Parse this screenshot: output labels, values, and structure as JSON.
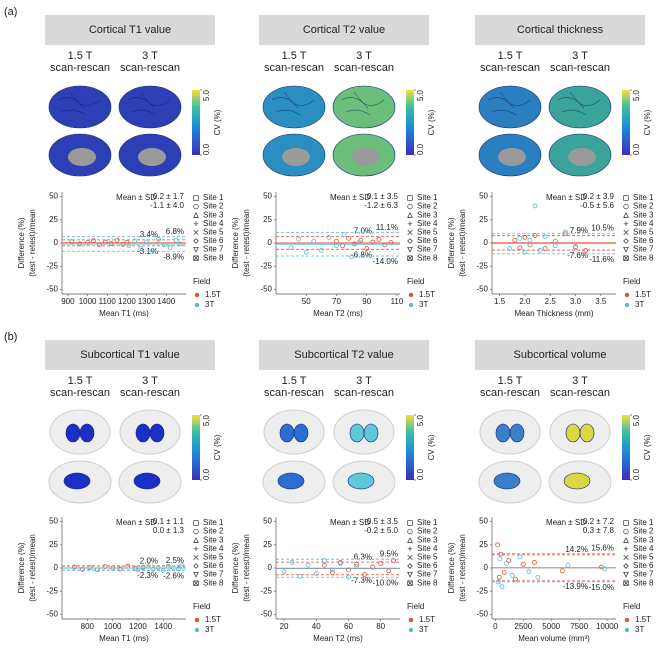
{
  "panel_labels": [
    "(a)",
    "(b)"
  ],
  "chart_data": [
    {
      "type": "scatter",
      "title": "Cortical T1 value",
      "scan_labels": [
        [
          "1.5 T",
          "scan-rescan"
        ],
        [
          "3 T",
          "scan-rescan"
        ]
      ],
      "colorbar": {
        "label": "CV (%)",
        "lim": [
          0,
          5
        ],
        "ticks": [
          {
            "value": 0,
            "label": "0.0"
          },
          {
            "value": 5,
            "label": "5.0"
          }
        ]
      },
      "xlabel": "Mean T1 (ms)",
      "ylabel": [
        "Difference (%)",
        "(test - retest)/mean"
      ],
      "xlim": [
        870,
        1500
      ],
      "xticks": [
        900,
        1000,
        1100,
        1200,
        1300,
        1400
      ],
      "ylim": [
        -55,
        55
      ],
      "yticks": [
        -50,
        -25,
        0,
        25,
        50
      ],
      "stats_title": "Mean ± SD",
      "sites": [
        "Site 1",
        "Site 2",
        "Site 3",
        "Site 4",
        "Site 5",
        "Site 6",
        "Site 7",
        "Site 8"
      ],
      "field_title": "Field",
      "series": [
        {
          "name": "1.5T",
          "color": "#e0533a",
          "x": [
            920,
            960,
            1000,
            1030,
            1060,
            1090,
            1120,
            1150,
            1180,
            1200
          ],
          "values": [
            1.5,
            -1,
            0.5,
            2.5,
            -2,
            1,
            -0.5,
            3,
            -1.5,
            0.8
          ],
          "mean": 0.2,
          "stat_label": "0.2 ± 1.7",
          "upper": 3.4,
          "upper_label": "3.4%",
          "lower": -3.1,
          "lower_label": "-3.1%"
        },
        {
          "name": "3T",
          "color": "#5fb8d3",
          "x": [
            1210,
            1240,
            1270,
            1300,
            1330,
            1360,
            1390,
            1420,
            1450,
            1470
          ],
          "values": [
            -3,
            2,
            -6,
            1,
            -8,
            4,
            -2,
            -5,
            3,
            -1
          ],
          "mean": -1.1,
          "stat_label": "-1.1 ± 4.0",
          "upper": 6.8,
          "upper_label": "6.8%",
          "lower": -8.9,
          "lower_label": "-8.9%"
        }
      ]
    },
    {
      "type": "scatter",
      "title": "Cortical T2 value",
      "scan_labels": [
        [
          "1.5 T",
          "scan-rescan"
        ],
        [
          "3 T",
          "scan-rescan"
        ]
      ],
      "colorbar": {
        "label": "CV (%)",
        "lim": [
          0,
          5
        ],
        "ticks": [
          {
            "value": 0,
            "label": "0.0"
          },
          {
            "value": 5,
            "label": "5.0"
          }
        ]
      },
      "xlabel": "Mean T2 (ms)",
      "ylabel": [
        "Difference (%)",
        "(test - retest)/mean"
      ],
      "xlim": [
        30,
        112
      ],
      "xticks": [
        50,
        70,
        90,
        110
      ],
      "ylim": [
        -55,
        55
      ],
      "yticks": [
        -50,
        -25,
        0,
        25,
        50
      ],
      "stats_title": "Mean ± SD",
      "sites": [
        "Site 1",
        "Site 2",
        "Site 3",
        "Site 4",
        "Site 5",
        "Site 6",
        "Site 7",
        "Site 8"
      ],
      "field_title": "Field",
      "series": [
        {
          "name": "1.5T",
          "color": "#e0533a",
          "x": [
            70,
            74,
            78,
            82,
            86,
            90,
            94,
            98,
            102,
            106
          ],
          "values": [
            2,
            -3,
            5,
            -1,
            3,
            -6,
            1,
            4,
            -2,
            0.5
          ],
          "mean": 0.1,
          "stat_label": "0.1 ± 3.5",
          "upper": 7.0,
          "upper_label": "7.0%",
          "lower": -6.8,
          "lower_label": "-6.8%"
        },
        {
          "name": "3T",
          "color": "#5fb8d3",
          "x": [
            40,
            45,
            50,
            55,
            60,
            65,
            70,
            75,
            80,
            85
          ],
          "values": [
            -5,
            4,
            -10,
            2,
            -8,
            6,
            -3,
            9,
            -15,
            1
          ],
          "mean": -1.2,
          "stat_label": "-1.2 ± 6.3",
          "upper": 11.1,
          "upper_label": "11.1%",
          "lower": -14.0,
          "lower_label": "-14.0%"
        }
      ]
    },
    {
      "type": "scatter",
      "title": "Cortical thickness",
      "scan_labels": [
        [
          "1.5 T",
          "scan-rescan"
        ],
        [
          "3 T",
          "scan-rescan"
        ]
      ],
      "colorbar": {
        "label": "CV (%)",
        "lim": [
          0,
          5
        ],
        "ticks": [
          {
            "value": 0,
            "label": "0.0"
          },
          {
            "value": 5,
            "label": "5.0"
          }
        ]
      },
      "xlabel": "Mean Thickness (mm)",
      "ylabel": [
        "Difference (%)",
        "(test - retest)/mean"
      ],
      "xlim": [
        1.35,
        3.8
      ],
      "xticks": [
        1.5,
        {
          "value": 2,
          "label": "2.0"
        },
        2.5,
        {
          "value": 3,
          "label": "3.0"
        },
        3.5
      ],
      "ylim": [
        -55,
        55
      ],
      "yticks": [
        -50,
        -25,
        0,
        25,
        50
      ],
      "stats_title": "Mean ± SD",
      "sites": [
        "Site 1",
        "Site 2",
        "Site 3",
        "Site 4",
        "Site 5",
        "Site 6",
        "Site 7",
        "Site 8"
      ],
      "field_title": "Field",
      "series": [
        {
          "name": "1.5T",
          "color": "#e0533a",
          "x": [
            1.8,
            1.9,
            2.0,
            2.1,
            2.2,
            2.4,
            2.6,
            2.8,
            3.0,
            3.2
          ],
          "values": [
            3,
            -5,
            6,
            -2,
            8,
            -6,
            2,
            10,
            -4,
            -8
          ],
          "mean": 0.2,
          "stat_label": "0.2 ± 3.9",
          "upper": 7.9,
          "upper_label": "7.9%",
          "lower": -7.6,
          "lower_label": "-7.6%"
        },
        {
          "name": "3T",
          "color": "#5fb8d3",
          "x": [
            1.7,
            1.9,
            2.0,
            2.1,
            2.2,
            2.3,
            2.4,
            2.6,
            2.8,
            3.0
          ],
          "values": [
            -6,
            5,
            -10,
            3,
            40,
            -8,
            7,
            -3,
            12,
            -5
          ],
          "mean": -0.5,
          "stat_label": "-0.5 ± 5.6",
          "upper": 10.5,
          "upper_label": "10.5%",
          "lower": -11.6,
          "lower_label": "-11.6%"
        }
      ]
    },
    {
      "type": "scatter",
      "title": "Subcortical T1 value",
      "scan_labels": [
        [
          "1.5 T",
          "scan-rescan"
        ],
        [
          "3 T",
          "scan-rescan"
        ]
      ],
      "colorbar": {
        "label": "CV (%)",
        "lim": [
          0,
          5
        ],
        "ticks": [
          {
            "value": 0,
            "label": "0.0"
          },
          {
            "value": 5,
            "label": "5.0"
          }
        ]
      },
      "xlabel": "Mean T1 (ms)",
      "ylabel": [
        "Difference (%)",
        "(test - retest)/mean"
      ],
      "xlim": [
        600,
        1580
      ],
      "xticks": [
        800,
        1000,
        1200,
        1400
      ],
      "ylim": [
        -55,
        55
      ],
      "yticks": [
        -50,
        -25,
        0,
        25,
        50
      ],
      "stats_title": "Mean ± SD",
      "sites": [
        "Site 1",
        "Site 2",
        "Site 3",
        "Site 4",
        "Site 5",
        "Site 6",
        "Site 7",
        "Site 8"
      ],
      "field_title": "Field",
      "series": [
        {
          "name": "1.5T",
          "color": "#e0533a",
          "x": [
            700,
            760,
            820,
            880,
            940,
            1000,
            1060,
            1120,
            1180,
            1240
          ],
          "values": [
            1,
            -1.5,
            0.5,
            -2,
            1.5,
            0,
            -1,
            1.8,
            -0.5,
            0.3
          ],
          "mean": -0.1,
          "stat_label": "-0.1 ± 1.1",
          "upper": 2.0,
          "upper_label": "2.0%",
          "lower": -2.3,
          "lower_label": "-2.3%"
        },
        {
          "name": "3T",
          "color": "#5fb8d3",
          "x": [
            1200,
            1240,
            1280,
            1320,
            1360,
            1400,
            1440,
            1480,
            1520,
            1550
          ],
          "values": [
            -2,
            1,
            2,
            -1.5,
            0.5,
            -2.5,
            1.8,
            0,
            -1,
            2.2
          ],
          "mean": 0.0,
          "stat_label": "0.0 ± 1.3",
          "upper": 2.5,
          "upper_label": "2.5%",
          "lower": -2.6,
          "lower_label": "-2.6%"
        }
      ]
    },
    {
      "type": "scatter",
      "title": "Subcortical T2 value",
      "scan_labels": [
        [
          "1.5 T",
          "scan-rescan"
        ],
        [
          "3 T",
          "scan-rescan"
        ]
      ],
      "colorbar": {
        "label": "CV (%)",
        "lim": [
          0,
          5
        ],
        "ticks": [
          {
            "value": 0,
            "label": "0.0"
          },
          {
            "value": 5,
            "label": "5.0"
          }
        ]
      },
      "xlabel": "Mean T2 (ms)",
      "ylabel": [
        "Difference (%)",
        "(test - retest)/mean"
      ],
      "xlim": [
        15,
        92
      ],
      "xticks": [
        20,
        40,
        60,
        80
      ],
      "ylim": [
        -55,
        55
      ],
      "yticks": [
        -50,
        -25,
        0,
        25,
        50
      ],
      "stats_title": "Mean ± SD",
      "sites": [
        "Site 1",
        "Site 2",
        "Site 3",
        "Site 4",
        "Site 5",
        "Site 6",
        "Site 7",
        "Site 8"
      ],
      "field_title": "Field",
      "series": [
        {
          "name": "1.5T",
          "color": "#e0533a",
          "x": [
            45,
            50,
            55,
            60,
            65,
            70,
            75,
            80,
            85,
            88
          ],
          "values": [
            3,
            -5,
            6,
            -2,
            4,
            -7,
            1,
            5,
            -3,
            8
          ],
          "mean": -0.5,
          "stat_label": "-0.5 ± 3.5",
          "upper": 6.3,
          "upper_label": "6.3%",
          "lower": -7.3,
          "lower_label": "-7.3%"
        },
        {
          "name": "3T",
          "color": "#5fb8d3",
          "x": [
            20,
            25,
            30,
            35,
            40,
            45,
            50,
            55,
            60,
            65
          ],
          "values": [
            -4,
            6,
            -9,
            3,
            -6,
            8,
            -2,
            5,
            -10,
            2
          ],
          "mean": -0.2,
          "stat_label": "-0.2 ± 5.0",
          "upper": 9.5,
          "upper_label": "9.5%",
          "lower": -10.0,
          "lower_label": "-10.0%"
        }
      ]
    },
    {
      "type": "scatter",
      "title": "Subcortical volume",
      "scan_labels": [
        [
          "1.5 T",
          "scan-rescan"
        ],
        [
          "3 T",
          "scan-rescan"
        ]
      ],
      "colorbar": {
        "label": "CV (%)",
        "lim": [
          0,
          5
        ],
        "ticks": [
          {
            "value": 0,
            "label": "0.0"
          },
          {
            "value": 5,
            "label": "5.0"
          }
        ]
      },
      "xlabel": "Mean volume (mm³)",
      "ylabel": [
        "Difference (%)",
        "(test - retest)/mean"
      ],
      "xlim": [
        -300,
        10800
      ],
      "xticks": [
        0,
        2500,
        5000,
        7500,
        10000
      ],
      "ylim": [
        -55,
        55
      ],
      "yticks": [
        -50,
        -25,
        0,
        25,
        50
      ],
      "stats_title": "Mean ± SD",
      "sites": [
        "Site 1",
        "Site 2",
        "Site 3",
        "Site 4",
        "Site 5",
        "Site 6",
        "Site 7",
        "Site 8"
      ],
      "field_title": "Field",
      "series": [
        {
          "name": "1.5T",
          "color": "#e0533a",
          "x": [
            200,
            350,
            500,
            800,
            1200,
            1800,
            2500,
            3500,
            6000,
            9500
          ],
          "values": [
            25,
            -10,
            15,
            -5,
            8,
            -12,
            4,
            6,
            -3,
            1
          ],
          "mean": 0.2,
          "stat_label": "0.2 ± 7.2",
          "upper": 14.2,
          "upper_label": "14.2%",
          "lower": -13.9,
          "lower_label": "-13.9%"
        },
        {
          "name": "3T",
          "color": "#5fb8d3",
          "x": [
            250,
            400,
            600,
            1000,
            1500,
            2200,
            3000,
            3800,
            6500,
            9800
          ],
          "values": [
            -15,
            10,
            -20,
            5,
            -8,
            12,
            -4,
            -10,
            3,
            -1
          ],
          "mean": 0.3,
          "stat_label": "0.3 ± 7.8",
          "upper": 15.6,
          "upper_label": "15.6%",
          "lower": -15.0,
          "lower_label": "-15.0%"
        }
      ]
    }
  ]
}
